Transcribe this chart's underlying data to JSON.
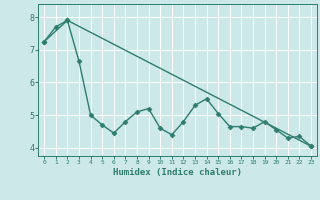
{
  "xlabel": "Humidex (Indice chaleur)",
  "bg_color": "#cce8e8",
  "line_color": "#2e7d6e",
  "grid_color": "#ffffff",
  "xlim": [
    -0.5,
    23.5
  ],
  "ylim": [
    3.75,
    8.4
  ],
  "yticks": [
    4,
    5,
    6,
    7,
    8
  ],
  "xticks": [
    0,
    1,
    2,
    3,
    4,
    5,
    6,
    7,
    8,
    9,
    10,
    11,
    12,
    13,
    14,
    15,
    16,
    17,
    18,
    19,
    20,
    21,
    22,
    23
  ],
  "line1_x": [
    0,
    1,
    2,
    3,
    4,
    5,
    6,
    7,
    8,
    9,
    10,
    11,
    12,
    13,
    14,
    15,
    16,
    17,
    18,
    19,
    20,
    21,
    22,
    23
  ],
  "line1_y": [
    7.25,
    7.7,
    7.9,
    6.65,
    5.0,
    4.7,
    4.45,
    4.8,
    5.1,
    5.2,
    4.6,
    4.4,
    4.8,
    5.3,
    5.5,
    5.05,
    4.65,
    4.65,
    4.6,
    4.8,
    4.55,
    4.3,
    4.35,
    4.05
  ],
  "line2_x": [
    0,
    2,
    23
  ],
  "line2_y": [
    7.25,
    7.9,
    4.05
  ]
}
